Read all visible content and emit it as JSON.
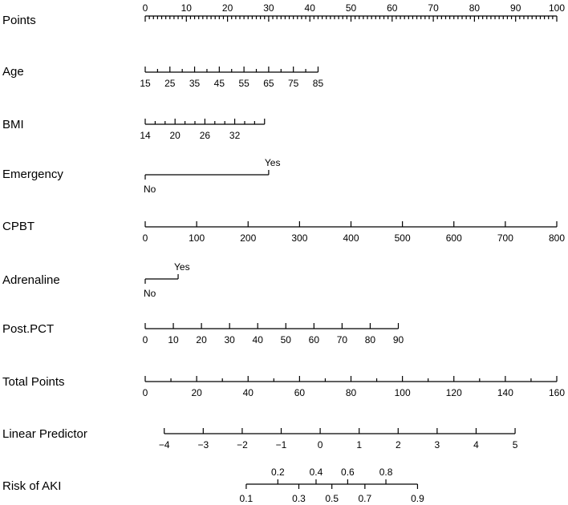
{
  "chart_data": {
    "type": "nomogram",
    "title": "",
    "points_range": [
      0,
      100
    ],
    "rows": [
      {
        "id": "points",
        "label": "Points",
        "kind": "scale",
        "min": 0,
        "max": 100,
        "major": 10,
        "minor": 1,
        "labels": [
          "0",
          "10",
          "20",
          "30",
          "40",
          "50",
          "60",
          "70",
          "80",
          "90",
          "100"
        ],
        "label_position": "above"
      },
      {
        "id": "age",
        "label": "Age",
        "kind": "scale",
        "min": 15,
        "max": 85,
        "major": 10,
        "minor": 5,
        "labels": [
          "15",
          "25",
          "35",
          "45",
          "55",
          "65",
          "75",
          "85"
        ],
        "label_position": "below"
      },
      {
        "id": "bmi",
        "label": "BMI",
        "kind": "scale",
        "min": 14,
        "max": 38,
        "major": 6,
        "minor": 2,
        "labels": [
          "14",
          "20",
          "26",
          "32"
        ],
        "label_position": "below"
      },
      {
        "id": "emergency",
        "label": "Emergency",
        "kind": "categorical",
        "categories": [
          {
            "name": "No",
            "points": 0,
            "label_position": "below"
          },
          {
            "name": "Yes",
            "points": 30,
            "label_position": "above"
          }
        ]
      },
      {
        "id": "cpbt",
        "label": "CPBT",
        "kind": "scale",
        "min": 0,
        "max": 800,
        "major": 100,
        "minor": 100,
        "labels": [
          "0",
          "100",
          "200",
          "300",
          "400",
          "500",
          "600",
          "700",
          "800"
        ],
        "label_position": "below"
      },
      {
        "id": "adrenaline",
        "label": "Adrenaline",
        "kind": "categorical",
        "categories": [
          {
            "name": "No",
            "points": 0,
            "label_position": "below"
          },
          {
            "name": "Yes",
            "points": 8,
            "label_position": "above"
          }
        ]
      },
      {
        "id": "post-pct",
        "label": "Post.PCT",
        "kind": "scale",
        "min": 0,
        "max": 90,
        "major": 10,
        "minor": 10,
        "labels": [
          "0",
          "10",
          "20",
          "30",
          "40",
          "50",
          "60",
          "70",
          "80",
          "90"
        ],
        "label_position": "below"
      },
      {
        "id": "total-points",
        "label": "Total Points",
        "kind": "scale",
        "min": 0,
        "max": 160,
        "major": 20,
        "minor": 10,
        "labels": [
          "0",
          "20",
          "40",
          "60",
          "80",
          "100",
          "120",
          "140",
          "160"
        ],
        "label_position": "below"
      },
      {
        "id": "linear-predictor",
        "label": "Linear Predictor",
        "kind": "scale",
        "min": -4,
        "max": 5,
        "major": 1,
        "minor": 1,
        "labels": [
          "−4",
          "−3",
          "−2",
          "−1",
          "0",
          "1",
          "2",
          "3",
          "4",
          "5"
        ],
        "label_position": "below",
        "total_points_range": [
          7.4,
          143.8
        ]
      },
      {
        "id": "risk-of-aki",
        "label": "Risk of AKI",
        "kind": "risk",
        "values": [
          0.1,
          0.2,
          0.3,
          0.4,
          0.5,
          0.6,
          0.7,
          0.8,
          0.9
        ],
        "labels": [
          "0.1",
          "0.2",
          "0.3",
          "0.4",
          "0.5",
          "0.6",
          "0.7",
          "0.8",
          "0.9"
        ],
        "label_sides": [
          "below",
          "above",
          "below",
          "above",
          "below",
          "above",
          "below",
          "above",
          "below"
        ]
      }
    ]
  }
}
